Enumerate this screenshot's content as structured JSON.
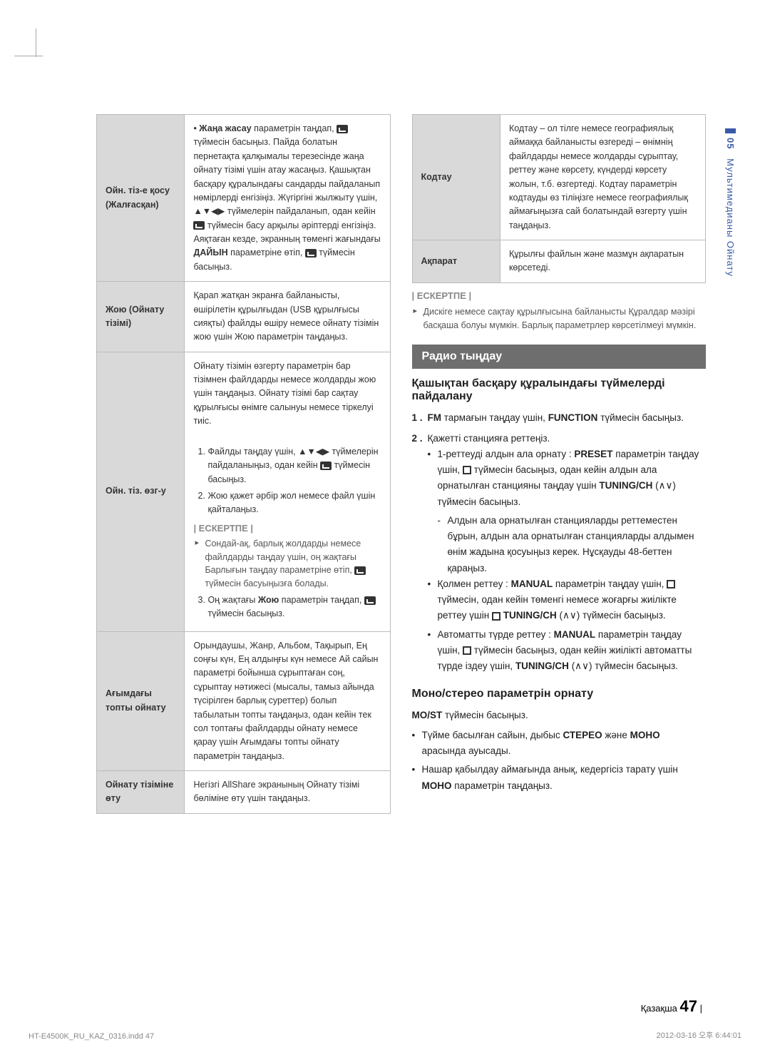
{
  "left_table": [
    {
      "label": "Ойн. тіз-е қосу (Жалғасқан)",
      "html": "• <b>Жаңа жасау</b> параметрін таңдап, <span class='icon-enter'></span> түймесін басыңыз. Пайда болатын пернетақта қалқымалы терезесінде жаңа ойнату тізімі үшін атау жасаңыз. Қашықтан басқару құралындағы сандарды пайдаланып нөмірлерді енгізіңіз. Жүгіргіні жылжыту үшін, ▲▼◀▶ түймелерін пайдаланып, одан кейін <span class='icon-enter'></span> түймесін басу арқылы әріптерді енгізіңіз. Аяқтаған кезде, экранның төменгі жағындағы <b>ДАЙЫН</b> параметріне өтіп, <span class='icon-enter'></span> түймесін басыңыз."
    },
    {
      "label": "Жою (Ойнату тізімі)",
      "html": "Қарап жатқан экранға байланысты, өшірілетін құрылғыдан (USB құрылғысы сияқты) файлды өшіру немесе ойнату тізімін жою үшін Жою параметрін таңдаңыз."
    },
    {
      "label": "Ойн. тіз. өзг-у",
      "html": "Ойнату тізімін өзгерту параметрін бар тізімнен файлдарды немесе жолдарды жою үшін таңдаңыз. Ойнату тізімі бар сақтау құрылғысы өнімге салынуы немесе тіркелуі тиіс.<br><br><ol><li>Файлды таңдау үшін, ▲▼◀▶ түймелерін пайдаланыңыз, одан кейін <span class='icon-enter'></span> түймесін басыңыз.</li><li>Жою қажет әрбір жол немесе файл үшін қайталаңыз.</li></ol><div class='inner-note'><div class='note-label'>| ЕСКЕРТПЕ |</div><div class='note-body'>Сондай-ақ, барлық жолдарды немесе файлдарды таңдау үшін, оң жақтағы Барлығын таңдау параметріне өтіп, <span class='icon-enter'></span> түймесін басуыңызға болады.</div></div><ol start='3'><li>Оң жақтағы <b>Жою</b> параметрін таңдап, <span class='icon-enter'></span> түймесін басыңыз.</li></ol>"
    },
    {
      "label": "Ағымдағы топты ойнату",
      "html": "Орындаушы, Жанр, Альбом, Тақырып, Ең соңғы күн, Ең алдыңғы күн немесе Ай сайын параметрі бойынша сұрыптаған соң, сұрыптау нәтижесі (мысалы, тамыз айында түсірілген барлық суреттер) болып табылатын топты таңдаңыз, одан кейін тек сол топтағы файлдарды ойнату немесе қарау үшін Ағымдағы топты ойнату параметрін таңдаңыз."
    },
    {
      "label": "Ойнату тізіміне өту",
      "html": "Негізгі AllShare экранының Ойнату тізімі бөліміне өту үшін таңдаңыз."
    }
  ],
  "right_table": [
    {
      "label": "Кодтау",
      "html": "Кодтау – ол тілге немесе географиялық аймаққа байланысты өзгереді – өнімнің файлдарды немесе жолдарды сұрыптау, реттеу және көрсету, күндерді көрсету жолын, т.б. өзгертеді. Кодтау параметрін кодтауды өз тіліңізге немесе географиялық аймағыңызға сай болатындай өзгерту үшін таңдаңыз."
    },
    {
      "label": "Ақпарат",
      "html": "Құрылғы файлын және мазмұн ақпаратын көрсетеді."
    }
  ],
  "note1_label": "| ЕСКЕРТПЕ |",
  "note1_body": "Дискіге немесе сақтау құрылғысына байланысты Құралдар мәзірі басқаша болуы мүмкін. Барлық параметрлер көрсетілмеуі мүмкін.",
  "banner": "Радио тыңдау",
  "h2a": "Қашықтан басқару құралындағы түймелерді пайдалану",
  "step1_num": "1 .",
  "step1": "<b>FM</b> тармағын таңдау үшін, <b>FUNCTION</b> түймесін басыңыз.",
  "step2_num": "2 .",
  "step2_intro": "Қажетті станцияға реттеңіз.",
  "b1": "1-реттеуді алдын ала орнату : <b>PRESET</b> параметрін таңдау үшін, <span class='icon-stop'></span> түймесін басыңыз, одан кейін алдын ала орнатылған станцияны таңдау үшін <b>TUNING/CH</b> (∧∨) түймесін басыңыз.",
  "d1": "Алдын ала орнатылған станцияларды реттеместен бұрын, алдын ала орнатылған станцияларды алдымен өнім жадына қосуыңыз керек. Нұсқауды 48-беттен қараңыз.",
  "b2": "Қолмен реттеу : <b>MANUAL</b> параметрін таңдау үшін, <span class='icon-stop'></span> түймесін, одан кейін төменгі немесе жоғарғы жиілікте реттеу үшін <span class='icon-stop'></span> <b>TUNING/CH</b> (∧∨) түймесін басыңыз.",
  "b3": "Автоматты түрде реттеу : <b>MANUAL</b> параметрін таңдау үшін, <span class='icon-stop'></span> түймесін басыңыз, одан кейін жиілікті автоматты түрде іздеу үшін, <b>TUNING/CH</b> (∧∨) түймесін басыңыз.",
  "h2b": "Моно/стерео параметрін орнату",
  "mono1": "<b>MO/ST</b> түймесін басыңыз.",
  "mono_b1": "Түйме басылған сайын, дыбыс <b>СТЕРЕО</b> және <b>МОНО</b> арасында ауысады.",
  "mono_b2": "Нашар қабылдау аймағында анық, кедергісіз тарату үшін <b>МОНО</b> параметрін таңдаңыз.",
  "side_chapter": "05",
  "side_title": "Мультимедианы Ойнату",
  "page_lang": "Қазақша",
  "page_num": "47",
  "footer_left": "HT-E4500K_RU_KAZ_0316.indd   47",
  "footer_right": "2012-03-16   오후 6:44:01"
}
